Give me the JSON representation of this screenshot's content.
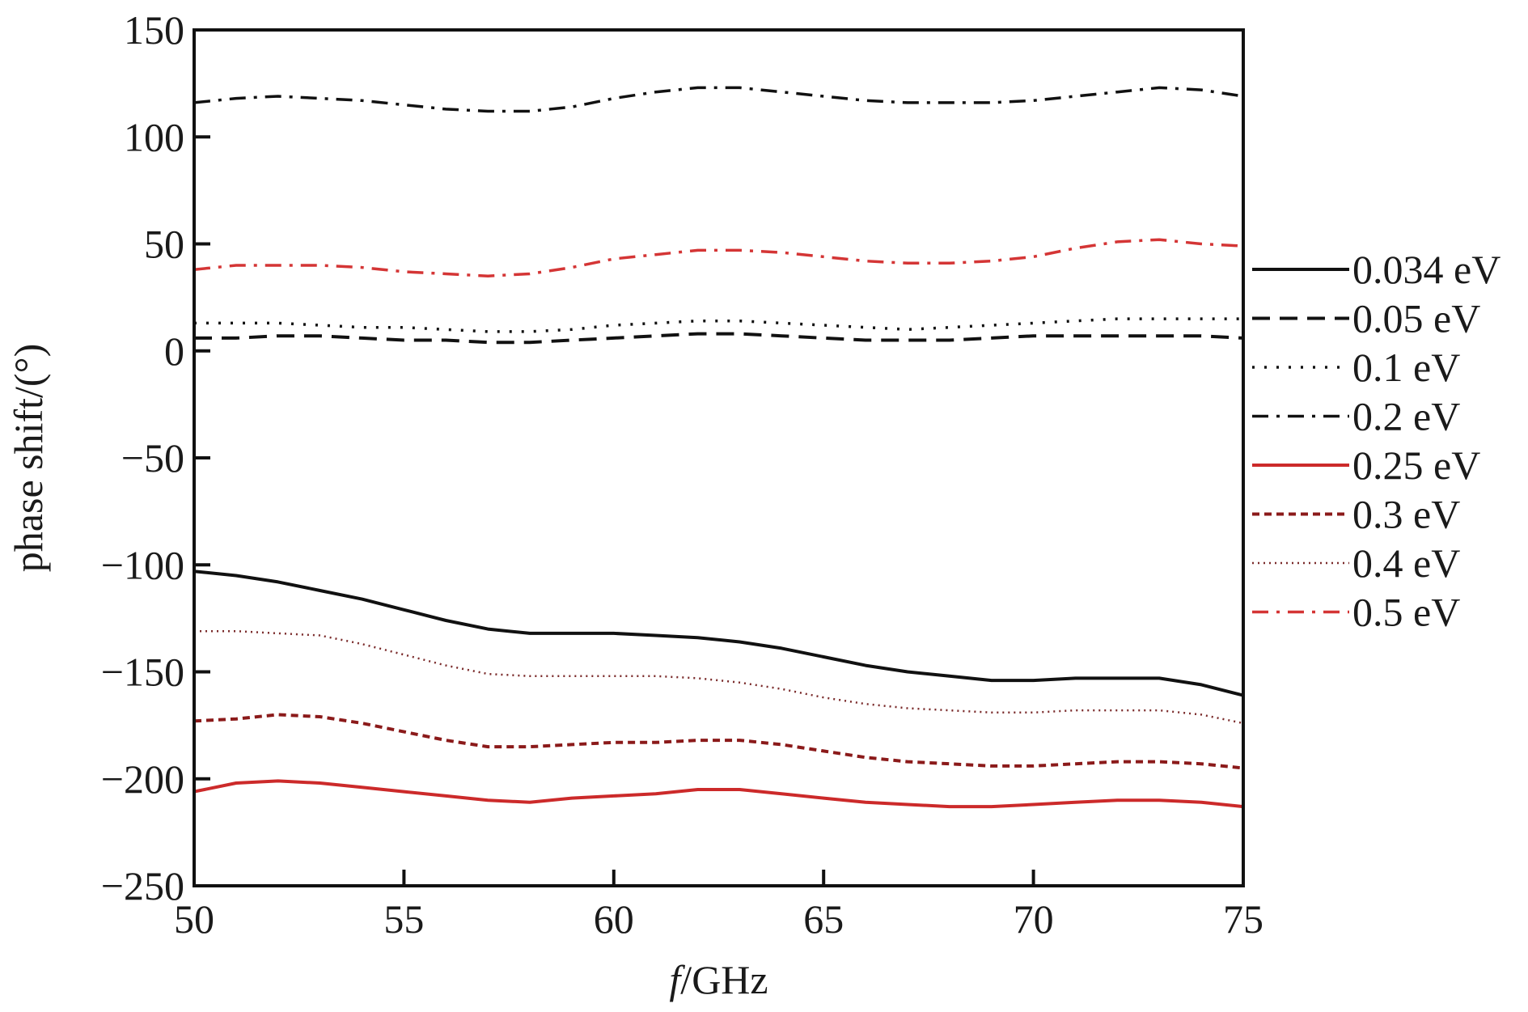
{
  "chart_data": {
    "type": "line",
    "xlabel_italic": "f",
    "xlabel_rest": "/GHz",
    "ylabel": "phase shift/(°)",
    "xlim": [
      50,
      75
    ],
    "ylim": [
      -250,
      150
    ],
    "xticks": [
      50,
      55,
      60,
      65,
      70,
      75
    ],
    "yticks": [
      -250,
      -200,
      -150,
      -100,
      -50,
      0,
      50,
      100,
      150
    ],
    "xtick_labels": [
      "50",
      "55",
      "60",
      "65",
      "70",
      "75"
    ],
    "ytick_labels": [
      "−250",
      "−200",
      "−150",
      "−100",
      "−50",
      "0",
      "50",
      "100",
      "150"
    ],
    "grid": false,
    "legend_position": "right",
    "series": [
      {
        "name": "0.034 eV",
        "color": "#111111",
        "style": "solid",
        "x": [
          50,
          51,
          52,
          53,
          54,
          55,
          56,
          57,
          58,
          59,
          60,
          61,
          62,
          63,
          64,
          65,
          66,
          67,
          68,
          69,
          70,
          71,
          72,
          73,
          74,
          75
        ],
        "y": [
          -103,
          -105,
          -108,
          -112,
          -116,
          -121,
          -126,
          -130,
          -132,
          -132,
          -132,
          -133,
          -134,
          -136,
          -139,
          -143,
          -147,
          -150,
          -152,
          -154,
          -154,
          -153,
          -153,
          -153,
          -156,
          -161
        ]
      },
      {
        "name": "0.05 eV",
        "color": "#111111",
        "style": "dashed",
        "x": [
          50,
          51,
          52,
          53,
          54,
          55,
          56,
          57,
          58,
          59,
          60,
          61,
          62,
          63,
          64,
          65,
          66,
          67,
          68,
          69,
          70,
          71,
          72,
          73,
          74,
          75
        ],
        "y": [
          6,
          6,
          7,
          7,
          6,
          5,
          5,
          4,
          4,
          5,
          6,
          7,
          8,
          8,
          7,
          6,
          5,
          5,
          5,
          6,
          7,
          7,
          7,
          7,
          7,
          6
        ]
      },
      {
        "name": "0.1 eV",
        "color": "#111111",
        "style": "dotted",
        "x": [
          50,
          51,
          52,
          53,
          54,
          55,
          56,
          57,
          58,
          59,
          60,
          61,
          62,
          63,
          64,
          65,
          66,
          67,
          68,
          69,
          70,
          71,
          72,
          73,
          74,
          75
        ],
        "y": [
          13,
          13,
          13,
          12,
          11,
          11,
          10,
          9,
          9,
          10,
          12,
          13,
          14,
          14,
          13,
          12,
          11,
          10,
          11,
          12,
          13,
          14,
          15,
          15,
          15,
          15
        ]
      },
      {
        "name": "0.2 eV",
        "color": "#111111",
        "style": "dashdot",
        "x": [
          50,
          51,
          52,
          53,
          54,
          55,
          56,
          57,
          58,
          59,
          60,
          61,
          62,
          63,
          64,
          65,
          66,
          67,
          68,
          69,
          70,
          71,
          72,
          73,
          74,
          75
        ],
        "y": [
          116,
          118,
          119,
          118,
          117,
          115,
          113,
          112,
          112,
          114,
          118,
          121,
          123,
          123,
          121,
          119,
          117,
          116,
          116,
          116,
          117,
          119,
          121,
          123,
          122,
          119
        ]
      },
      {
        "name": "0.25 eV",
        "color": "#cc2a2a",
        "style": "solid",
        "x": [
          50,
          51,
          52,
          53,
          54,
          55,
          56,
          57,
          58,
          59,
          60,
          61,
          62,
          63,
          64,
          65,
          66,
          67,
          68,
          69,
          70,
          71,
          72,
          73,
          74,
          75
        ],
        "y": [
          -206,
          -202,
          -201,
          -202,
          -204,
          -206,
          -208,
          -210,
          -211,
          -209,
          -208,
          -207,
          -205,
          -205,
          -207,
          -209,
          -211,
          -212,
          -213,
          -213,
          -212,
          -211,
          -210,
          -210,
          -211,
          -213
        ]
      },
      {
        "name": "0.3 eV",
        "color": "#8b1a1a",
        "style": "shortdash",
        "x": [
          50,
          51,
          52,
          53,
          54,
          55,
          56,
          57,
          58,
          59,
          60,
          61,
          62,
          63,
          64,
          65,
          66,
          67,
          68,
          69,
          70,
          71,
          72,
          73,
          74,
          75
        ],
        "y": [
          -173,
          -172,
          -170,
          -171,
          -174,
          -178,
          -182,
          -185,
          -185,
          -184,
          -183,
          -183,
          -182,
          -182,
          -184,
          -187,
          -190,
          -192,
          -193,
          -194,
          -194,
          -193,
          -192,
          -192,
          -193,
          -195
        ]
      },
      {
        "name": "0.4 eV",
        "color": "#7a2a2a",
        "style": "finedot",
        "x": [
          50,
          51,
          52,
          53,
          54,
          55,
          56,
          57,
          58,
          59,
          60,
          61,
          62,
          63,
          64,
          65,
          66,
          67,
          68,
          69,
          70,
          71,
          72,
          73,
          74,
          75
        ],
        "y": [
          -131,
          -131,
          -132,
          -133,
          -137,
          -142,
          -147,
          -151,
          -152,
          -152,
          -152,
          -152,
          -153,
          -155,
          -158,
          -162,
          -165,
          -167,
          -168,
          -169,
          -169,
          -168,
          -168,
          -168,
          -170,
          -174
        ]
      },
      {
        "name": "0.5 eV",
        "color": "#d43535",
        "style": "dashdot",
        "x": [
          50,
          51,
          52,
          53,
          54,
          55,
          56,
          57,
          58,
          59,
          60,
          61,
          62,
          63,
          64,
          65,
          66,
          67,
          68,
          69,
          70,
          71,
          72,
          73,
          74,
          75
        ],
        "y": [
          38,
          40,
          40,
          40,
          39,
          37,
          36,
          35,
          36,
          39,
          43,
          45,
          47,
          47,
          46,
          44,
          42,
          41,
          41,
          42,
          44,
          48,
          51,
          52,
          50,
          49
        ]
      }
    ]
  }
}
